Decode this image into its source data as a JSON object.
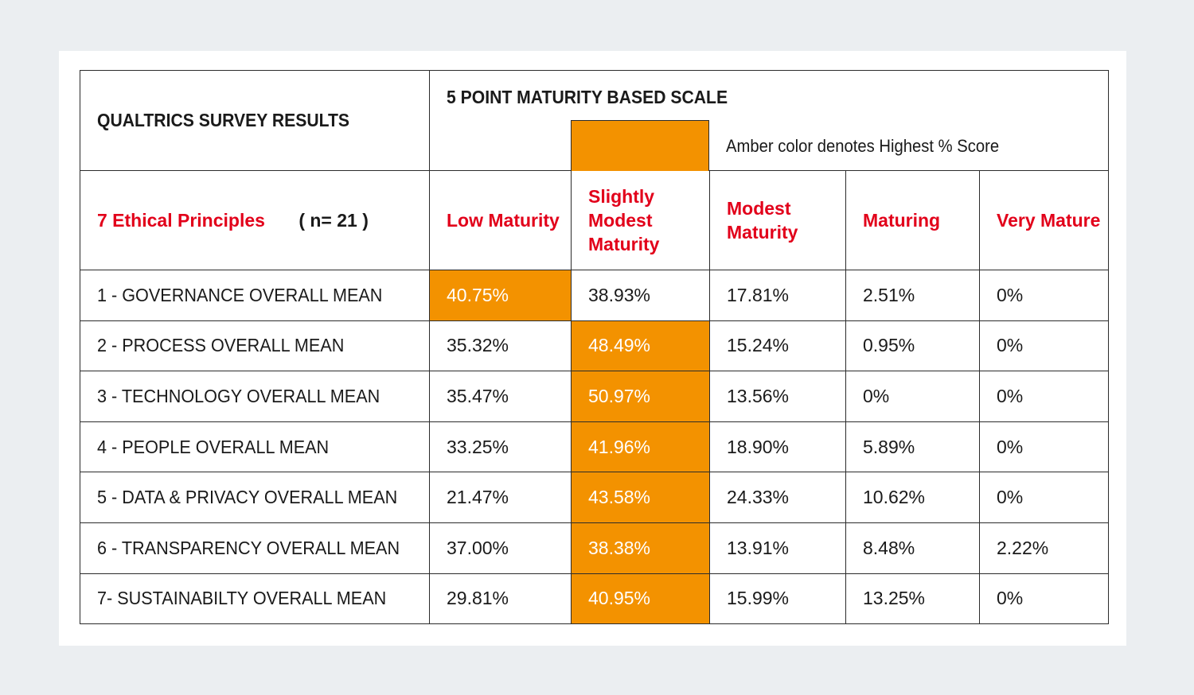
{
  "chart_data": {
    "type": "table",
    "title": "QUALTRICS SURVEY RESULTS",
    "scale_title": "5 POINT MATURITY BASED SCALE",
    "legend_note": "Amber color denotes Highest % Score",
    "highlight_color": "#f39200",
    "header_text_color": "#e2001a",
    "row_header": "7 Ethical Principles",
    "sample_size": "( n= 21 )",
    "columns": [
      "Low Maturity",
      "Slightly Modest Maturity",
      "Modest Maturity",
      "Maturing",
      "Very Mature"
    ],
    "rows": [
      {
        "label": "1 - GOVERNANCE OVERALL MEAN",
        "values": [
          "40.75%",
          "38.93%",
          "17.81%",
          "2.51%",
          "0%"
        ],
        "highest_index": 0
      },
      {
        "label": "2 - PROCESS OVERALL MEAN",
        "values": [
          "35.32%",
          "48.49%",
          "15.24%",
          "0.95%",
          "0%"
        ],
        "highest_index": 1
      },
      {
        "label": "3 - TECHNOLOGY OVERALL MEAN",
        "values": [
          "35.47%",
          "50.97%",
          "13.56%",
          "0%",
          "0%"
        ],
        "highest_index": 1
      },
      {
        "label": "4 - PEOPLE OVERALL MEAN",
        "values": [
          "33.25%",
          "41.96%",
          "18.90%",
          "5.89%",
          "0%"
        ],
        "highest_index": 1
      },
      {
        "label": "5 - DATA & PRIVACY OVERALL MEAN",
        "values": [
          "21.47%",
          "43.58%",
          "24.33%",
          "10.62%",
          "0%"
        ],
        "highest_index": 1
      },
      {
        "label": "6 - TRANSPARENCY OVERALL MEAN",
        "values": [
          "37.00%",
          "38.38%",
          "13.91%",
          "8.48%",
          "2.22%"
        ],
        "highest_index": 1
      },
      {
        "label": "7- SUSTAINABILTY OVERALL MEAN",
        "values": [
          "29.81%",
          "40.95%",
          "15.99%",
          "13.25%",
          "0%"
        ],
        "highest_index": 1
      }
    ]
  }
}
